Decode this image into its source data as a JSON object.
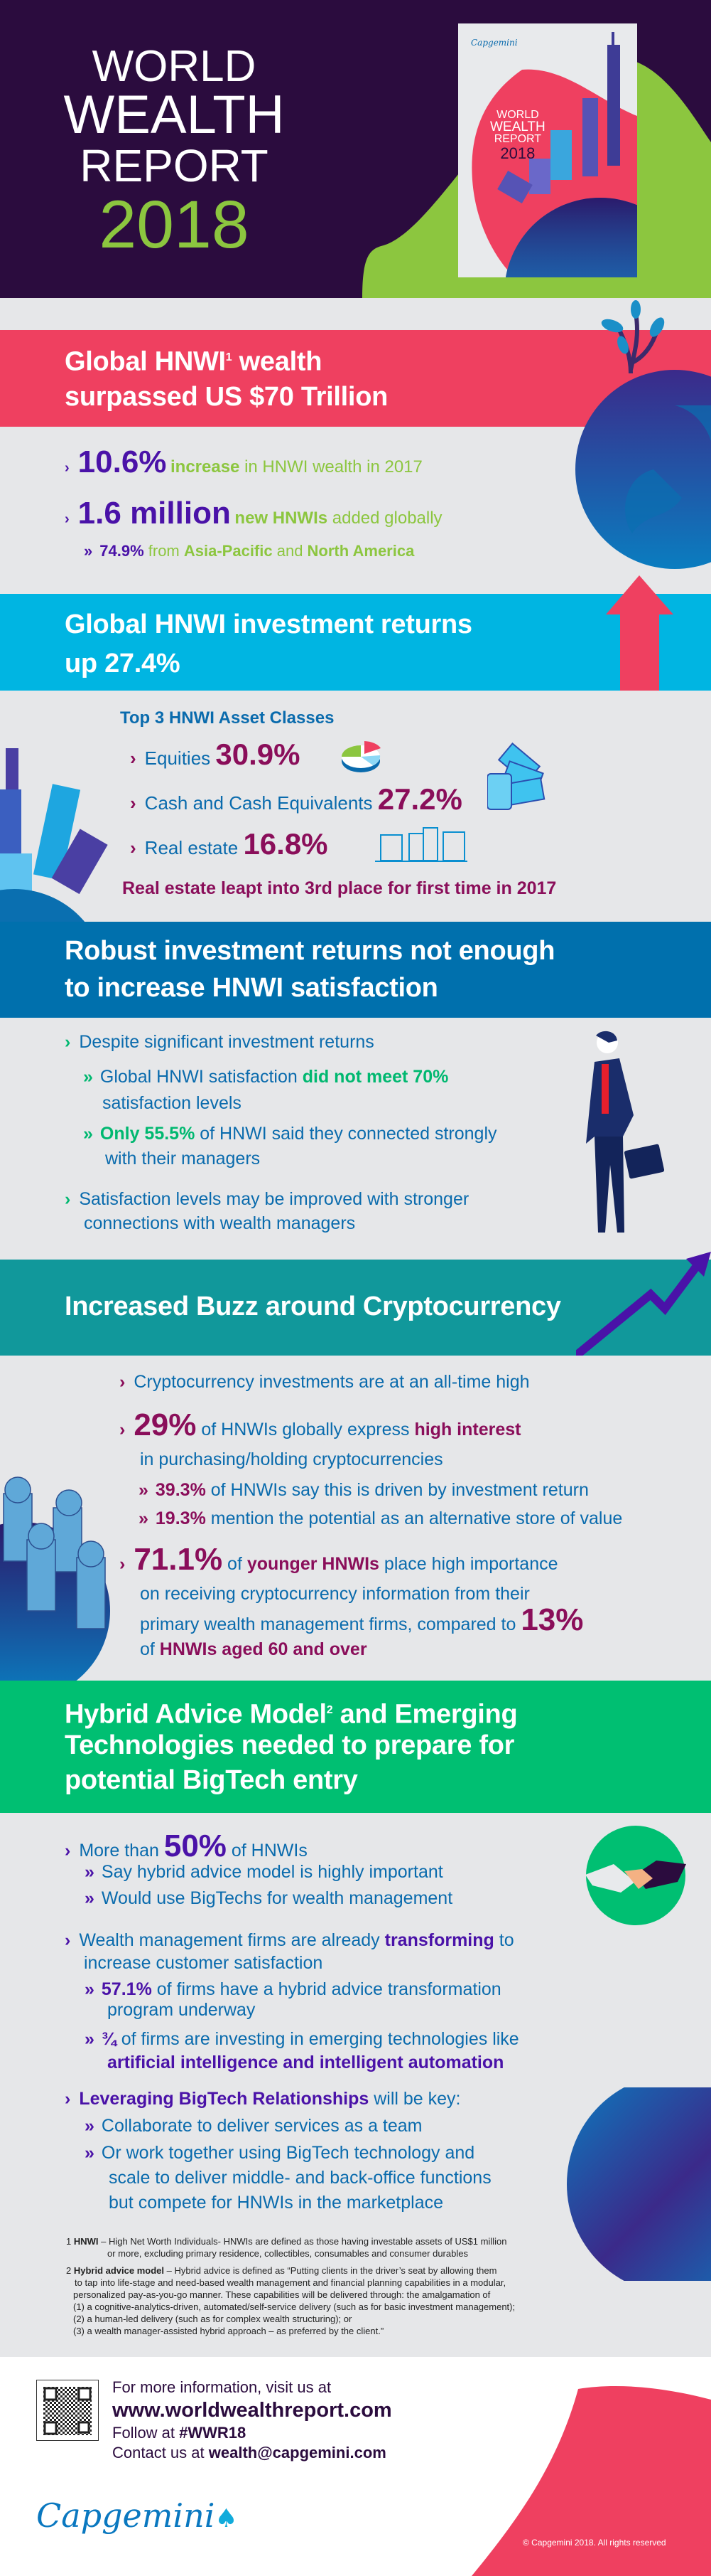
{
  "header": {
    "title_lines": [
      "WORLD",
      "WEALTH",
      "REPORT"
    ],
    "year": "2018",
    "cover": {
      "brand": "Capgemini",
      "title_lines": [
        "WORLD",
        "WEALTH",
        "REPORT"
      ],
      "year": "2018"
    }
  },
  "section1": {
    "title_line1_a": "Global HNWI",
    "title_sup": "1",
    "title_line1_b": " wealth",
    "title_line2": "surpassed US $70 Trillion",
    "bullets": [
      {
        "value": "10.6%",
        "bold": "increase",
        "text": " in HNWI wealth in 2017"
      },
      {
        "value": "1.6 million",
        "bold": "new HNWIs",
        "text": " added globally"
      }
    ],
    "sub": {
      "value": "74.9%",
      "text1": " from ",
      "bold1": "Asia-Pacific",
      "text2": " and ",
      "bold2": "North America"
    }
  },
  "section2": {
    "title_line1": "Global HNWI investment returns",
    "title_line2": "up 27.4%",
    "asset_heading": "Top 3 HNWI Asset Classes",
    "assets": [
      {
        "label": "Equities",
        "value": "30.9%",
        "icon": "pie-chart-icon"
      },
      {
        "label": "Cash and Cash Equivalents",
        "value": "27.2%",
        "icon": "cash-coins-icon"
      },
      {
        "label": "Real estate",
        "value": "16.8%",
        "icon": "buildings-icon"
      }
    ],
    "note": "Real estate leapt into 3rd place for first time in 2017"
  },
  "section3": {
    "title_line1": "Robust investment returns not enough",
    "title_line2": "to increase HNWI satisfaction",
    "b1": "Despite significant investment returns",
    "s1_a": "Global HNWI satisfaction ",
    "s1_bold": "did not meet 70%",
    "s1_b": "satisfaction levels",
    "s2_bold": "Only 55.5%",
    "s2_a": " of HNWI said they connected strongly",
    "s2_b": "with their managers",
    "b2_line1": "Satisfaction levels may be improved with stronger",
    "b2_line2": "connections with wealth managers"
  },
  "section4": {
    "title": "Increased Buzz around Cryptocurrency",
    "b1": "Cryptocurrency investments are at an all-time high",
    "b2_value": "29%",
    "b2_text": " of HNWIs globally express ",
    "b2_bold": "high interest",
    "b2_line2": "in purchasing/holding cryptocurrencies",
    "subs": [
      {
        "value": "39.3%",
        "text": "of HNWIs say this is driven by investment return"
      },
      {
        "value": "19.3%",
        "text": "mention the potential as an alternative store of value"
      }
    ],
    "b3_value": "71.1%",
    "b3_text1": " of ",
    "b3_bold": "younger HNWIs",
    "b3_text2": " place high importance",
    "b3_line2": "on receiving cryptocurrency information from their",
    "b3_line3": "primary wealth management firms, compared to ",
    "b3_value2": "13%",
    "b3_line4_a": "of ",
    "b3_line4_bold": "HNWIs aged 60 and over"
  },
  "section5": {
    "title_line1_a": "Hybrid Advice Model",
    "title_sup": "2",
    "title_line1_b": " and Emerging",
    "title_line2": "Technologies needed to prepare for",
    "title_line3": "potential BigTech entry",
    "b1_a": "More than ",
    "b1_value": "50%",
    "b1_b": " of HNWIs",
    "b1_subs": [
      "Say hybrid advice model is highly important",
      "Would use BigTechs for wealth management"
    ],
    "b2_a": "Wealth management firms are already ",
    "b2_bold": "transforming",
    "b2_b": " to",
    "b2_line2": "increase customer satisfaction",
    "s1_value": "57.1%",
    "s1_text": " of firms have a hybrid advice transformation",
    "s1_line2": "program underway",
    "s2_value": "¾",
    "s2_text": " of firms are investing in emerging technologies like",
    "s2_bold": "artificial intelligence and intelligent automation",
    "b3_bold": "Leveraging BigTech Relationships",
    "b3_text": " will be key:",
    "b3_sub1": "Collaborate to deliver services as a team",
    "b3_sub2_lines": [
      "Or work together using BigTech technology and",
      "scale to deliver middle- and back-office functions",
      "but compete for HNWIs in the marketplace"
    ]
  },
  "footnotes": {
    "f1_num": "1 ",
    "f1_bold": "HNWI",
    "f1_line1": " – High Net Worth Individuals- HNWIs are defined as those having investable assets of US$1 million",
    "f1_line2": "or more, excluding primary residence, collectibles, consumables and consumer durables",
    "f2_num": "2 ",
    "f2_bold": "Hybrid advice model",
    "f2_line1": " – Hybrid advice is defined as “Putting clients in the driver’s seat by allowing them",
    "f2_lines": [
      "to tap into life-stage and need-based wealth management and financial planning capabilities in a modular,",
      "personalized pay-as-you-go manner. These capabilities will be delivered through: the amalgamation of",
      "(1) a cognitive-analytics-driven, automated/self-service delivery (such as for basic investment management);",
      "(2) a human-led delivery (such as for complex wealth structuring); or",
      "(3) a wealth manager-assisted hybrid approach – as preferred by the client.”"
    ]
  },
  "footer": {
    "info": "For more information, visit us at",
    "url": "www.worldwealthreport.com",
    "follow_label": "Follow at ",
    "hashtag": "#WWR18",
    "contact_label": "Contact us at ",
    "email": "wealth@capgemini.com",
    "brand": "Capgemini",
    "copyright": "© Capgemini 2018. All rights reserved"
  },
  "colors": {
    "header_bg": "#2b0c3e",
    "pink": "#ef4060",
    "lime": "#8cc63f",
    "cyan": "#00b5e2",
    "blue": "#0070ad",
    "teal": "#11989b",
    "green": "#00bf72",
    "purple": "#4a12a8",
    "magenta": "#8a0e5a"
  }
}
